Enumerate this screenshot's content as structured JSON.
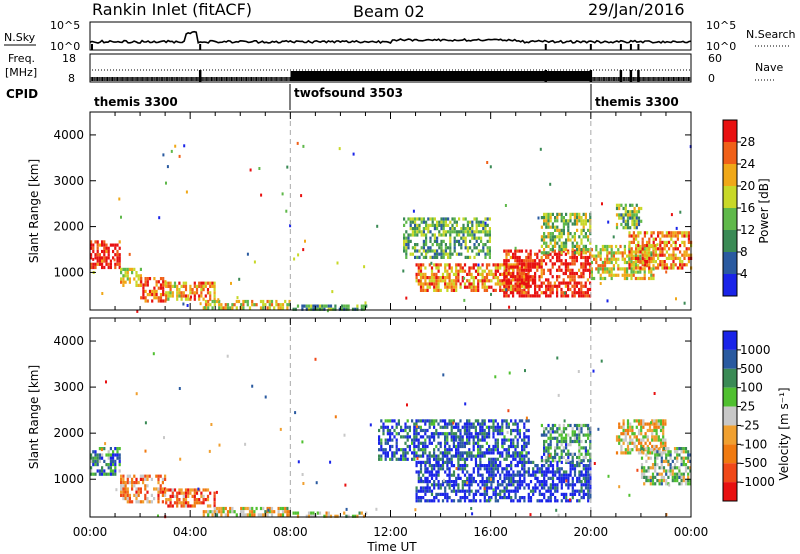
{
  "header": {
    "station": "Rankin Inlet (fitACF)",
    "beam": "Beam 02",
    "date": "29/Jan/2016"
  },
  "summary_panels": {
    "nsky": {
      "label": "N.Sky",
      "ticks_left": [
        "10^5",
        "10^0"
      ],
      "right_label": "N.Search",
      "ticks_right": [
        "10^5",
        "10^0"
      ]
    },
    "freq": {
      "label_line1": "Freq.",
      "label_line2": "[MHz]",
      "ticks_left": [
        "18",
        "8"
      ],
      "right_label": "Nave",
      "ticks_right": [
        "60",
        "0"
      ]
    },
    "cpid": {
      "label": "CPID",
      "segments": [
        {
          "name": "themis 3300",
          "start_h": 0,
          "end_h": 8
        },
        {
          "name": "twofsound 3503",
          "start_h": 8,
          "end_h": 20
        },
        {
          "name": "themis 3300",
          "start_h": 20,
          "end_h": 24
        }
      ]
    }
  },
  "colors": {
    "power_scale": [
      "#1a24e8",
      "#2a5aa0",
      "#3a8a55",
      "#5fb84a",
      "#c8d828",
      "#f0a818",
      "#f06018",
      "#e81010"
    ],
    "velocity_scale": [
      "#e81010",
      "#f04818",
      "#f07a10",
      "#f0a030",
      "#c8c8c8",
      "#50c030",
      "#3a8a55",
      "#2a5aa0",
      "#1a24e8"
    ]
  },
  "chart_data": [
    {
      "type": "heatmap",
      "quantity": "Power",
      "ylabel": "Slant Range [km]",
      "xlim_hours": [
        0,
        24
      ],
      "ylim_km": [
        180,
        4500
      ],
      "yticks": [
        "1000",
        "2000",
        "3000",
        "4000"
      ],
      "colorbar_label": "Power [dB]",
      "colorbar_ticks": [
        "4",
        "8",
        "12",
        "16",
        "20",
        "24",
        "28"
      ],
      "grid": false,
      "echo_regions": [
        {
          "t0": 0.0,
          "t1": 1.2,
          "r0": 1100,
          "r1": 1700,
          "level": 0.95
        },
        {
          "t0": 1.2,
          "t1": 2.0,
          "r0": 700,
          "r1": 1100,
          "level": 0.55
        },
        {
          "t0": 2.0,
          "t1": 3.0,
          "r0": 400,
          "r1": 900,
          "level": 0.85
        },
        {
          "t0": 3.0,
          "t1": 5.0,
          "r0": 450,
          "r1": 800,
          "level": 0.7
        },
        {
          "t0": 4.5,
          "t1": 8.0,
          "r0": 200,
          "r1": 400,
          "level": 0.6
        },
        {
          "t0": 8.0,
          "t1": 11.0,
          "r0": 190,
          "r1": 300,
          "level": 0.35
        },
        {
          "t0": 12.5,
          "t1": 16.0,
          "r0": 1300,
          "r1": 2200,
          "level": 0.4
        },
        {
          "t0": 13.0,
          "t1": 17.5,
          "r0": 600,
          "r1": 1200,
          "level": 0.75
        },
        {
          "t0": 16.5,
          "t1": 20.0,
          "r0": 500,
          "r1": 1500,
          "level": 0.95
        },
        {
          "t0": 18.0,
          "t1": 20.0,
          "r0": 1400,
          "r1": 2300,
          "level": 0.5
        },
        {
          "t0": 20.0,
          "t1": 22.5,
          "r0": 900,
          "r1": 1600,
          "level": 0.6
        },
        {
          "t0": 21.5,
          "t1": 24.0,
          "r0": 1100,
          "r1": 1900,
          "level": 0.75
        },
        {
          "t0": 21.0,
          "t1": 22.0,
          "r0": 2000,
          "r1": 2500,
          "level": 0.45
        }
      ]
    },
    {
      "type": "heatmap",
      "quantity": "Velocity",
      "ylabel": "Slant Range [km]",
      "xlabel": "Time UT",
      "xlim_hours": [
        0,
        24
      ],
      "ylim_km": [
        180,
        4500
      ],
      "yticks": [
        "1000",
        "2000",
        "3000",
        "4000"
      ],
      "xticks": [
        "00:00",
        "04:00",
        "08:00",
        "12:00",
        "16:00",
        "20:00",
        "00:00"
      ],
      "colorbar_label": "Velocity [m s⁻¹]",
      "colorbar_ticks": [
        "1000",
        "500",
        "100",
        "25",
        "-25",
        "-100",
        "-500",
        "-1000"
      ],
      "grid": false,
      "echo_regions": [
        {
          "t0": 0.0,
          "t1": 1.2,
          "r0": 1100,
          "r1": 1700,
          "level": 0.75
        },
        {
          "t0": 1.2,
          "t1": 3.0,
          "r0": 500,
          "r1": 1100,
          "level": 0.3
        },
        {
          "t0": 3.0,
          "t1": 5.0,
          "r0": 450,
          "r1": 800,
          "level": 0.25
        },
        {
          "t0": 4.5,
          "t1": 8.0,
          "r0": 200,
          "r1": 400,
          "level": 0.45
        },
        {
          "t0": 8.0,
          "t1": 11.0,
          "r0": 190,
          "r1": 300,
          "level": 0.55
        },
        {
          "t0": 11.5,
          "t1": 17.5,
          "r0": 1400,
          "r1": 2300,
          "level": 0.85
        },
        {
          "t0": 13.0,
          "t1": 20.0,
          "r0": 500,
          "r1": 1400,
          "level": 0.95
        },
        {
          "t0": 18.0,
          "t1": 20.0,
          "r0": 1400,
          "r1": 2200,
          "level": 0.7
        },
        {
          "t0": 21.0,
          "t1": 23.0,
          "r0": 1600,
          "r1": 2300,
          "level": 0.45
        },
        {
          "t0": 22.0,
          "t1": 24.0,
          "r0": 900,
          "r1": 1700,
          "level": 0.6
        }
      ]
    }
  ]
}
